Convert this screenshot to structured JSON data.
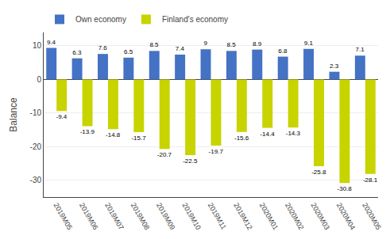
{
  "chart_data": {
    "type": "bar",
    "ylabel": "Balance",
    "categories": [
      "2019M05",
      "2019M06",
      "2019M07",
      "2019M08",
      "2019M09",
      "2019M10",
      "2019M11",
      "2019M12",
      "2020M01",
      "2020M02",
      "2020M03",
      "2020M04",
      "2020M05"
    ],
    "series": [
      {
        "name": "Own economy",
        "color": "#4472C4",
        "values": [
          9.4,
          6.3,
          7.6,
          6.5,
          8.5,
          7.4,
          9.0,
          8.5,
          8.9,
          6.8,
          9.1,
          2.3,
          7.1
        ]
      },
      {
        "name": "Finland's economy",
        "color": "#C8D400",
        "values": [
          -9.4,
          -13.9,
          -14.8,
          -15.7,
          -20.7,
          -22.5,
          -19.7,
          -15.6,
          -14.4,
          -14.3,
          -25.8,
          -30.8,
          -28.1
        ]
      }
    ],
    "ylim": [
      -35,
      14
    ],
    "yticks": [
      -30,
      -20,
      -10,
      0,
      10
    ],
    "grid": true,
    "legend": "upper left",
    "data_labels": true
  }
}
